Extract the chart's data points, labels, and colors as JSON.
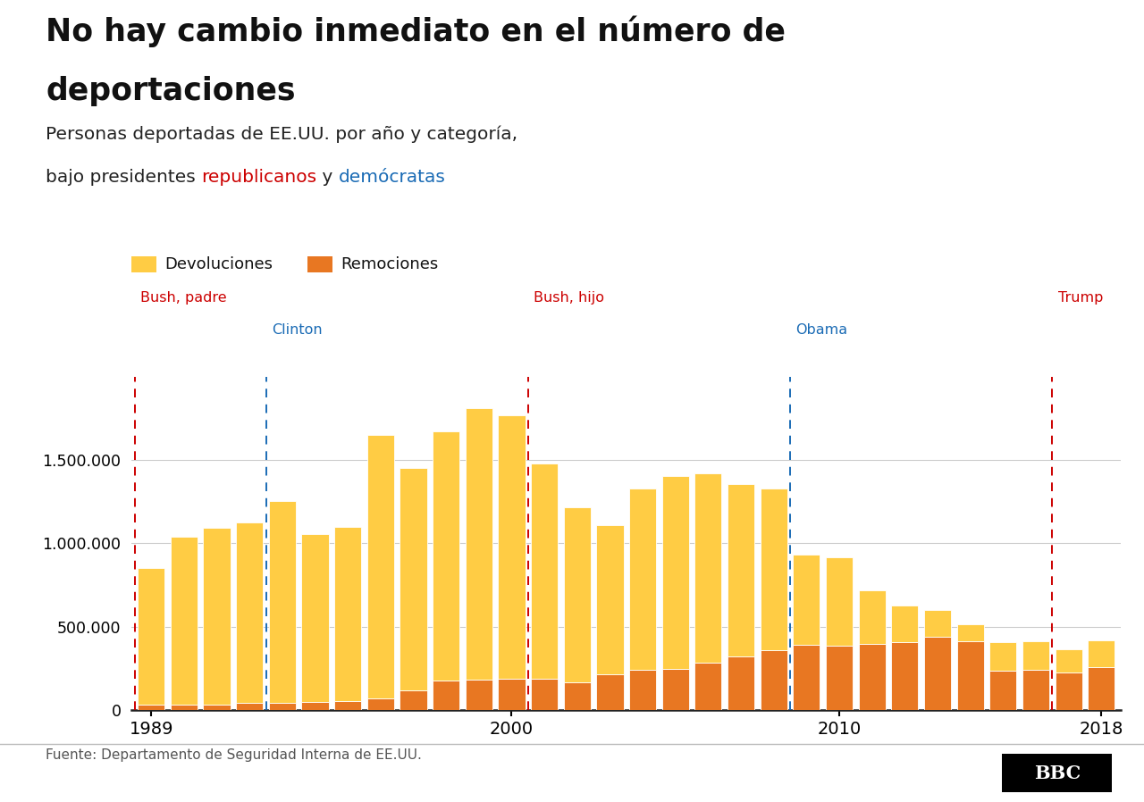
{
  "years": [
    1989,
    1990,
    1991,
    1992,
    1993,
    1994,
    1995,
    1996,
    1997,
    1998,
    1999,
    2000,
    2001,
    2002,
    2003,
    2004,
    2005,
    2006,
    2007,
    2008,
    2009,
    2010,
    2011,
    2012,
    2013,
    2014,
    2015,
    2016,
    2017,
    2018
  ],
  "removals": [
    30000,
    30000,
    33000,
    43000,
    42000,
    45000,
    50000,
    69000,
    114000,
    174000,
    183000,
    188000,
    189000,
    165000,
    212000,
    240000,
    246000,
    281000,
    319000,
    360000,
    393000,
    387000,
    397000,
    409000,
    438000,
    414000,
    235000,
    240000,
    226000,
    256000
  ],
  "returns": [
    820000,
    1010000,
    1060000,
    1080000,
    1210000,
    1010000,
    1050000,
    1580000,
    1340000,
    1500000,
    1630000,
    1580000,
    1290000,
    1050000,
    900000,
    1090000,
    1160000,
    1140000,
    1040000,
    970000,
    540000,
    530000,
    320000,
    220000,
    160000,
    100000,
    170000,
    170000,
    140000,
    160000
  ],
  "president_years": [
    1989,
    1993,
    2001,
    2009,
    2017
  ],
  "president_names": [
    "Bush, padre",
    "Clinton",
    "Bush, hijo",
    "Obama",
    "Trump"
  ],
  "president_colors": [
    "#cc0000",
    "#1a6bb5",
    "#cc0000",
    "#1a6bb5",
    "#cc0000"
  ],
  "president_rows": [
    0,
    1,
    0,
    1,
    0
  ],
  "title_line1": "No hay cambio inmediato en el número de",
  "title_line2": "deportaciones",
  "subtitle_line1": "Personas deportadas de EE.UU. por año y categoría,",
  "subtitle_line2_plain": "bajo presidentes ",
  "subtitle_republican": "republicanos",
  "subtitle_middle": " y ",
  "subtitle_democrat": "demócratas",
  "legend_label1": "Devoluciones",
  "legend_label2": "Remociones",
  "color_returns": "#FFCC44",
  "color_removals": "#E87722",
  "color_republican": "#cc0000",
  "color_democrat": "#1a6bb5",
  "source_text": "Fuente: Departamento de Seguridad Interna de EE.UU.",
  "yticks": [
    0,
    500000,
    1000000,
    1500000
  ],
  "ytick_labels": [
    "0",
    "500.000",
    "1.000.000",
    "1.500.000"
  ],
  "ymax": 2000000,
  "background_color": "#ffffff"
}
